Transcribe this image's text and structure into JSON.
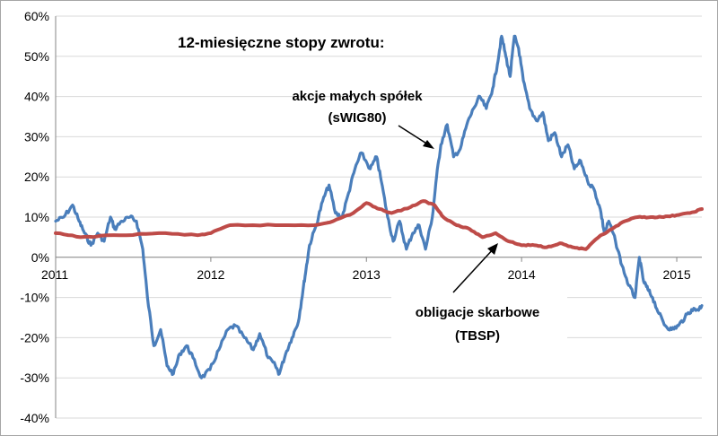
{
  "chart_data": {
    "type": "line",
    "title": "12-miesięczne stopy zwrotu:",
    "xlabel": "",
    "ylabel": "",
    "x_type": "date",
    "xlim": [
      "2011-01-01",
      "2015-03-01"
    ],
    "x_tick_labels": [
      "2011",
      "2012",
      "2013",
      "2014",
      "2015"
    ],
    "ylim": [
      -40,
      60
    ],
    "y_ticks": [
      -40,
      -30,
      -20,
      -10,
      0,
      10,
      20,
      30,
      40,
      50,
      60
    ],
    "y_tick_labels": [
      "-40%",
      "-30%",
      "-20%",
      "-10%",
      "0%",
      "10%",
      "20%",
      "30%",
      "40%",
      "50%",
      "60%"
    ],
    "grid": "horizontal",
    "legend": "none",
    "series": [
      {
        "name": "akcje małych spółek (sWIG80)",
        "color": "#4a7ebb",
        "points": [
          [
            "2011-01-01",
            9
          ],
          [
            "2011-01-20",
            10
          ],
          [
            "2011-02-10",
            13
          ],
          [
            "2011-02-25",
            9
          ],
          [
            "2011-03-10",
            6
          ],
          [
            "2011-03-25",
            3
          ],
          [
            "2011-04-10",
            6
          ],
          [
            "2011-04-25",
            4
          ],
          [
            "2011-05-10",
            10
          ],
          [
            "2011-05-20",
            7
          ],
          [
            "2011-06-05",
            9
          ],
          [
            "2011-06-25",
            10
          ],
          [
            "2011-07-10",
            9
          ],
          [
            "2011-07-25",
            2
          ],
          [
            "2011-08-05",
            -10
          ],
          [
            "2011-08-20",
            -22
          ],
          [
            "2011-09-05",
            -18
          ],
          [
            "2011-09-20",
            -27
          ],
          [
            "2011-10-05",
            -29
          ],
          [
            "2011-10-20",
            -24
          ],
          [
            "2011-11-05",
            -22
          ],
          [
            "2011-11-20",
            -25
          ],
          [
            "2011-12-10",
            -30
          ],
          [
            "2011-12-30",
            -28
          ],
          [
            "2012-01-20",
            -23
          ],
          [
            "2012-02-10",
            -18
          ],
          [
            "2012-02-28",
            -17
          ],
          [
            "2012-03-20",
            -20
          ],
          [
            "2012-04-10",
            -23
          ],
          [
            "2012-04-25",
            -19
          ],
          [
            "2012-05-15",
            -25
          ],
          [
            "2012-06-01",
            -27
          ],
          [
            "2012-06-10",
            -29
          ],
          [
            "2012-06-25",
            -24
          ],
          [
            "2012-07-10",
            -20
          ],
          [
            "2012-07-25",
            -16
          ],
          [
            "2012-08-05",
            -8
          ],
          [
            "2012-08-12",
            -3
          ],
          [
            "2012-08-20",
            3
          ],
          [
            "2012-09-05",
            8
          ],
          [
            "2012-09-20",
            14
          ],
          [
            "2012-10-05",
            18
          ],
          [
            "2012-10-20",
            11
          ],
          [
            "2012-11-05",
            10
          ],
          [
            "2012-11-20",
            16
          ],
          [
            "2012-12-05",
            22
          ],
          [
            "2012-12-20",
            26
          ],
          [
            "2013-01-10",
            22
          ],
          [
            "2013-01-25",
            25
          ],
          [
            "2013-02-05",
            19
          ],
          [
            "2013-02-20",
            10
          ],
          [
            "2013-03-05",
            4
          ],
          [
            "2013-03-20",
            9
          ],
          [
            "2013-04-05",
            2
          ],
          [
            "2013-04-20",
            6
          ],
          [
            "2013-05-05",
            8
          ],
          [
            "2013-05-20",
            2
          ],
          [
            "2013-06-05",
            10
          ],
          [
            "2013-06-15",
            20
          ],
          [
            "2013-06-25",
            28
          ],
          [
            "2013-07-10",
            33
          ],
          [
            "2013-07-25",
            25
          ],
          [
            "2013-08-10",
            27
          ],
          [
            "2013-08-25",
            33
          ],
          [
            "2013-09-10",
            37
          ],
          [
            "2013-09-25",
            40
          ],
          [
            "2013-10-10",
            37
          ],
          [
            "2013-10-25",
            42
          ],
          [
            "2013-11-05",
            48
          ],
          [
            "2013-11-15",
            55
          ],
          [
            "2013-11-25",
            50
          ],
          [
            "2013-12-05",
            45
          ],
          [
            "2013-12-15",
            55
          ],
          [
            "2013-12-25",
            52
          ],
          [
            "2014-01-05",
            44
          ],
          [
            "2014-01-20",
            37
          ],
          [
            "2014-02-05",
            34
          ],
          [
            "2014-02-20",
            36
          ],
          [
            "2014-03-05",
            29
          ],
          [
            "2014-03-20",
            31
          ],
          [
            "2014-04-05",
            25
          ],
          [
            "2014-04-20",
            28
          ],
          [
            "2014-05-05",
            22
          ],
          [
            "2014-05-20",
            24
          ],
          [
            "2014-06-05",
            19
          ],
          [
            "2014-06-20",
            17
          ],
          [
            "2014-07-05",
            12
          ],
          [
            "2014-07-15",
            6
          ],
          [
            "2014-07-25",
            9
          ],
          [
            "2014-08-10",
            4
          ],
          [
            "2014-08-25",
            -2
          ],
          [
            "2014-09-10",
            -7
          ],
          [
            "2014-09-25",
            -10
          ],
          [
            "2014-10-05",
            0
          ],
          [
            "2014-10-15",
            -6
          ],
          [
            "2014-10-25",
            -8
          ],
          [
            "2014-11-05",
            -10
          ],
          [
            "2014-11-20",
            -14
          ],
          [
            "2014-12-05",
            -17
          ],
          [
            "2014-12-20",
            -18
          ],
          [
            "2015-01-05",
            -17
          ],
          [
            "2015-01-20",
            -15
          ],
          [
            "2015-02-05",
            -13
          ],
          [
            "2015-02-20",
            -13
          ],
          [
            "2015-03-01",
            -12
          ]
        ]
      },
      {
        "name": "obligacje skarbowe (TBSP)",
        "color": "#be4b48",
        "points": [
          [
            "2011-01-01",
            6
          ],
          [
            "2011-03-01",
            5
          ],
          [
            "2011-06-01",
            5.5
          ],
          [
            "2011-09-01",
            6
          ],
          [
            "2011-12-01",
            5.5
          ],
          [
            "2012-01-01",
            6
          ],
          [
            "2012-02-15",
            8
          ],
          [
            "2012-06-01",
            8
          ],
          [
            "2012-09-01",
            8
          ],
          [
            "2012-10-15",
            9
          ],
          [
            "2012-12-01",
            11
          ],
          [
            "2013-01-01",
            13.5
          ],
          [
            "2013-02-01",
            12
          ],
          [
            "2013-03-01",
            11
          ],
          [
            "2013-04-15",
            12.5
          ],
          [
            "2013-05-15",
            14
          ],
          [
            "2013-06-10",
            13
          ],
          [
            "2013-07-01",
            10
          ],
          [
            "2013-08-01",
            8
          ],
          [
            "2013-09-01",
            7
          ],
          [
            "2013-10-01",
            5
          ],
          [
            "2013-11-01",
            6
          ],
          [
            "2013-12-01",
            4
          ],
          [
            "2014-01-01",
            3
          ],
          [
            "2014-02-01",
            3
          ],
          [
            "2014-03-01",
            2.5
          ],
          [
            "2014-04-01",
            3.5
          ],
          [
            "2014-05-01",
            2.5
          ],
          [
            "2014-06-01",
            2
          ],
          [
            "2014-07-01",
            5
          ],
          [
            "2014-08-01",
            7
          ],
          [
            "2014-09-01",
            9
          ],
          [
            "2014-10-01",
            10
          ],
          [
            "2014-11-01",
            10
          ],
          [
            "2014-12-01",
            10
          ],
          [
            "2015-01-01",
            10.5
          ],
          [
            "2015-02-01",
            11
          ],
          [
            "2015-03-01",
            12
          ]
        ]
      }
    ],
    "annotations": [
      {
        "lines": [
          "akcje małych spółek",
          "(sWIG80)"
        ]
      },
      {
        "lines": [
          "obligacje skarbowe",
          "(TBSP)"
        ]
      }
    ]
  }
}
